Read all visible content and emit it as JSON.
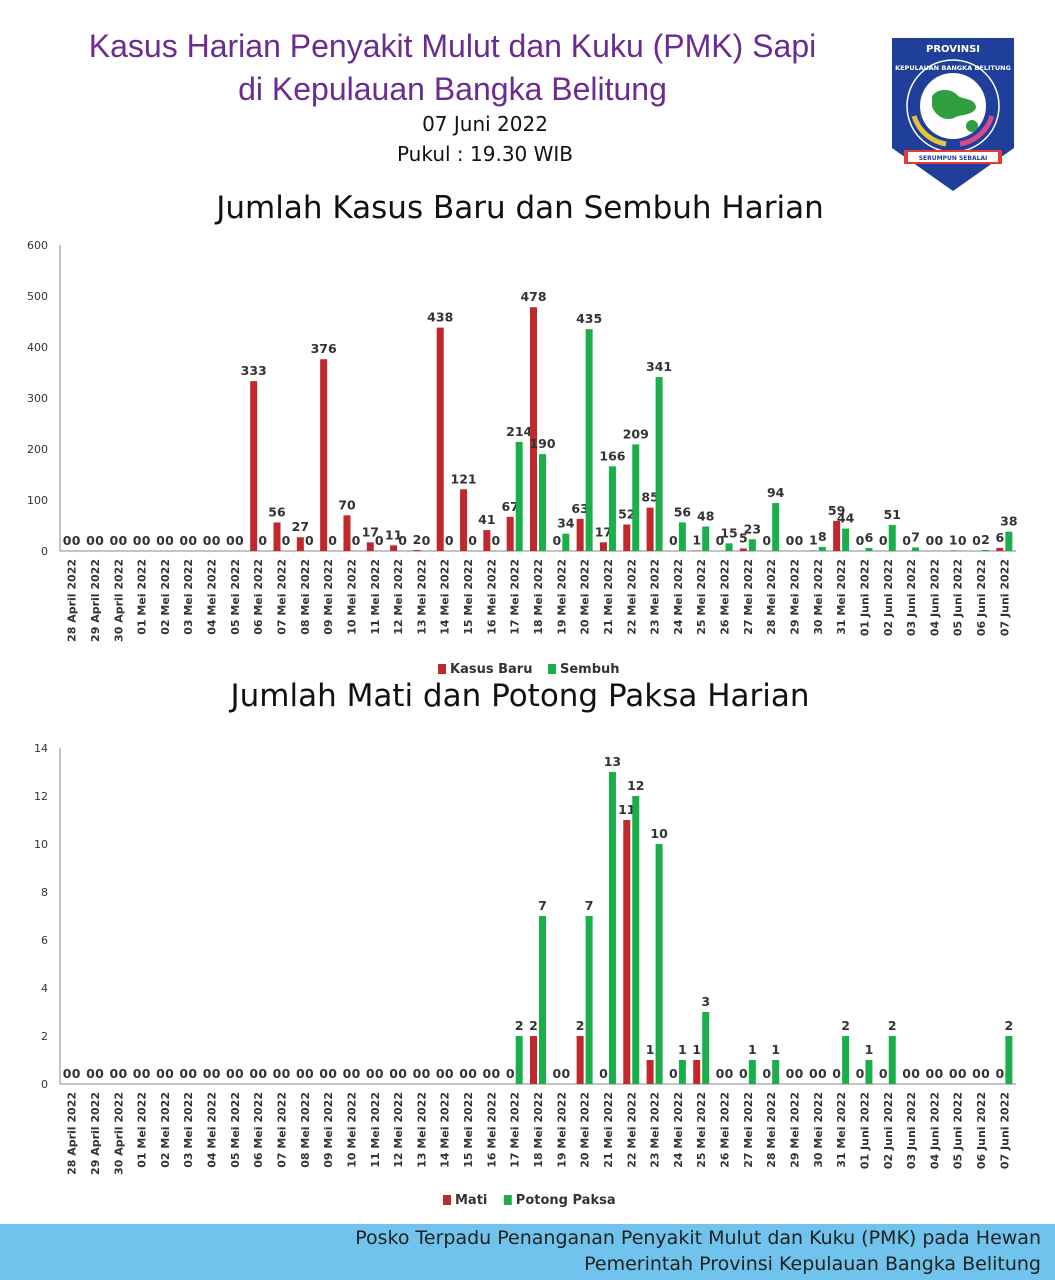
{
  "header": {
    "title_line1": "Kasus Harian Penyakit Mulut dan Kuku (PMK) Sapi",
    "title_line2": "di Kepulauan Bangka Belitung",
    "date": "07 Juni 2022",
    "time": "Pukul : 19.30 WIB"
  },
  "logo": {
    "top_text": "PROVINSI",
    "ring_text": "KEPULAUAN BANGKA BELITUNG",
    "motto": "SERUMPUN SEBALAI"
  },
  "colors": {
    "red": "#c0282d",
    "green": "#19b04b",
    "title": "#6a2c91",
    "footer": "#6fc3ec"
  },
  "chart_data": [
    {
      "type": "bar",
      "title": "Jumlah Kasus Baru dan Sembuh Harian",
      "categories": [
        "28 April 2022",
        "29 April 2022",
        "30 April 2022",
        "01 Mei 2022",
        "02 Mei 2022",
        "03 Mei 2022",
        "04 Mei 2022",
        "05 Mei 2022",
        "06 Mei 2022",
        "07 Mei 2022",
        "08 Mei 2022",
        "09 Mei 2022",
        "10 Mei 2022",
        "11 Mei 2022",
        "12 Mei 2022",
        "13 Mei 2022",
        "14 Mei 2022",
        "15 Mei 2022",
        "16 Mei 2022",
        "17 Mei 2022",
        "18 Mei 2022",
        "19 Mei 2022",
        "20 Mei 2022",
        "21 Mei 2022",
        "22 Mei 2022",
        "23 Mei 2022",
        "24 Mei 2022",
        "25 Mei 2022",
        "26 Mei 2022",
        "27 Mei 2022",
        "28 Mei 2022",
        "29 Mei 2022",
        "30 Mei 2022",
        "31 Mei 2022",
        "01 Juni 2022",
        "02 Juni 2022",
        "03 Juni 2022",
        "04 Juni 2022",
        "05 Juni 2022",
        "06 Juni 2022",
        "07 Juni 2022"
      ],
      "series": [
        {
          "name": "Kasus Baru",
          "values": [
            0,
            0,
            0,
            0,
            0,
            0,
            0,
            0,
            333,
            56,
            27,
            376,
            70,
            17,
            11,
            2,
            438,
            121,
            41,
            67,
            478,
            0,
            63,
            17,
            52,
            85,
            0,
            1,
            0,
            5,
            0,
            0,
            1,
            59,
            0,
            0,
            0,
            0,
            1,
            0,
            6
          ]
        },
        {
          "name": "Sembuh",
          "values": [
            0,
            0,
            0,
            0,
            0,
            0,
            0,
            0,
            0,
            0,
            0,
            0,
            0,
            0,
            0,
            0,
            0,
            0,
            0,
            214,
            190,
            34,
            435,
            166,
            209,
            341,
            56,
            48,
            15,
            23,
            94,
            0,
            8,
            44,
            6,
            51,
            7,
            0,
            0,
            2,
            38
          ]
        }
      ],
      "ylim": [
        0,
        600
      ],
      "yticks": [
        0,
        100,
        200,
        300,
        400,
        500,
        600
      ],
      "legend_position": "bottom"
    },
    {
      "type": "bar",
      "title": "Jumlah Mati dan Potong Paksa Harian",
      "categories": [
        "28 April 2022",
        "29 April 2022",
        "30 April 2022",
        "01 Mei 2022",
        "02 Mei 2022",
        "03 Mei 2022",
        "04 Mei 2022",
        "05 Mei 2022",
        "06 Mei 2022",
        "07 Mei 2022",
        "08 Mei 2022",
        "09 Mei 2022",
        "10 Mei 2022",
        "11 Mei 2022",
        "12 Mei 2022",
        "13 Mei 2022",
        "14 Mei 2022",
        "15 Mei 2022",
        "16 Mei 2022",
        "17 Mei 2022",
        "18 Mei 2022",
        "19 Mei 2022",
        "20 Mei 2022",
        "21 Mei 2022",
        "22 Mei 2022",
        "23 Mei 2022",
        "24 Mei 2022",
        "25 Mei 2022",
        "26 Mei 2022",
        "27 Mei 2022",
        "28 Mei 2022",
        "29 Mei 2022",
        "30 Mei 2022",
        "31 Mei 2022",
        "01 Juni 2022",
        "02 Juni 2022",
        "03 Juni 2022",
        "04 Juni 2022",
        "05 Juni 2022",
        "06 Juni 2022",
        "07 Juni 2022"
      ],
      "series": [
        {
          "name": "Mati",
          "values": [
            0,
            0,
            0,
            0,
            0,
            0,
            0,
            0,
            0,
            0,
            0,
            0,
            0,
            0,
            0,
            0,
            0,
            0,
            0,
            0,
            2,
            0,
            2,
            0,
            11,
            1,
            0,
            1,
            0,
            0,
            0,
            0,
            0,
            0,
            0,
            0,
            0,
            0,
            0,
            0,
            0
          ]
        },
        {
          "name": "Potong Paksa",
          "values": [
            0,
            0,
            0,
            0,
            0,
            0,
            0,
            0,
            0,
            0,
            0,
            0,
            0,
            0,
            0,
            0,
            0,
            0,
            0,
            2,
            7,
            0,
            7,
            13,
            12,
            10,
            1,
            3,
            0,
            1,
            1,
            0,
            0,
            2,
            1,
            2,
            0,
            0,
            0,
            0,
            2
          ]
        }
      ],
      "ylim": [
        0,
        14
      ],
      "yticks": [
        0,
        2,
        4,
        6,
        8,
        10,
        12,
        14
      ],
      "legend_position": "bottom"
    }
  ],
  "footer": {
    "line1": "Posko Terpadu Penanganan Penyakit Mulut dan Kuku (PMK) pada Hewan",
    "line2": "Pemerintah Provinsi Kepulauan Bangka Belitung"
  }
}
